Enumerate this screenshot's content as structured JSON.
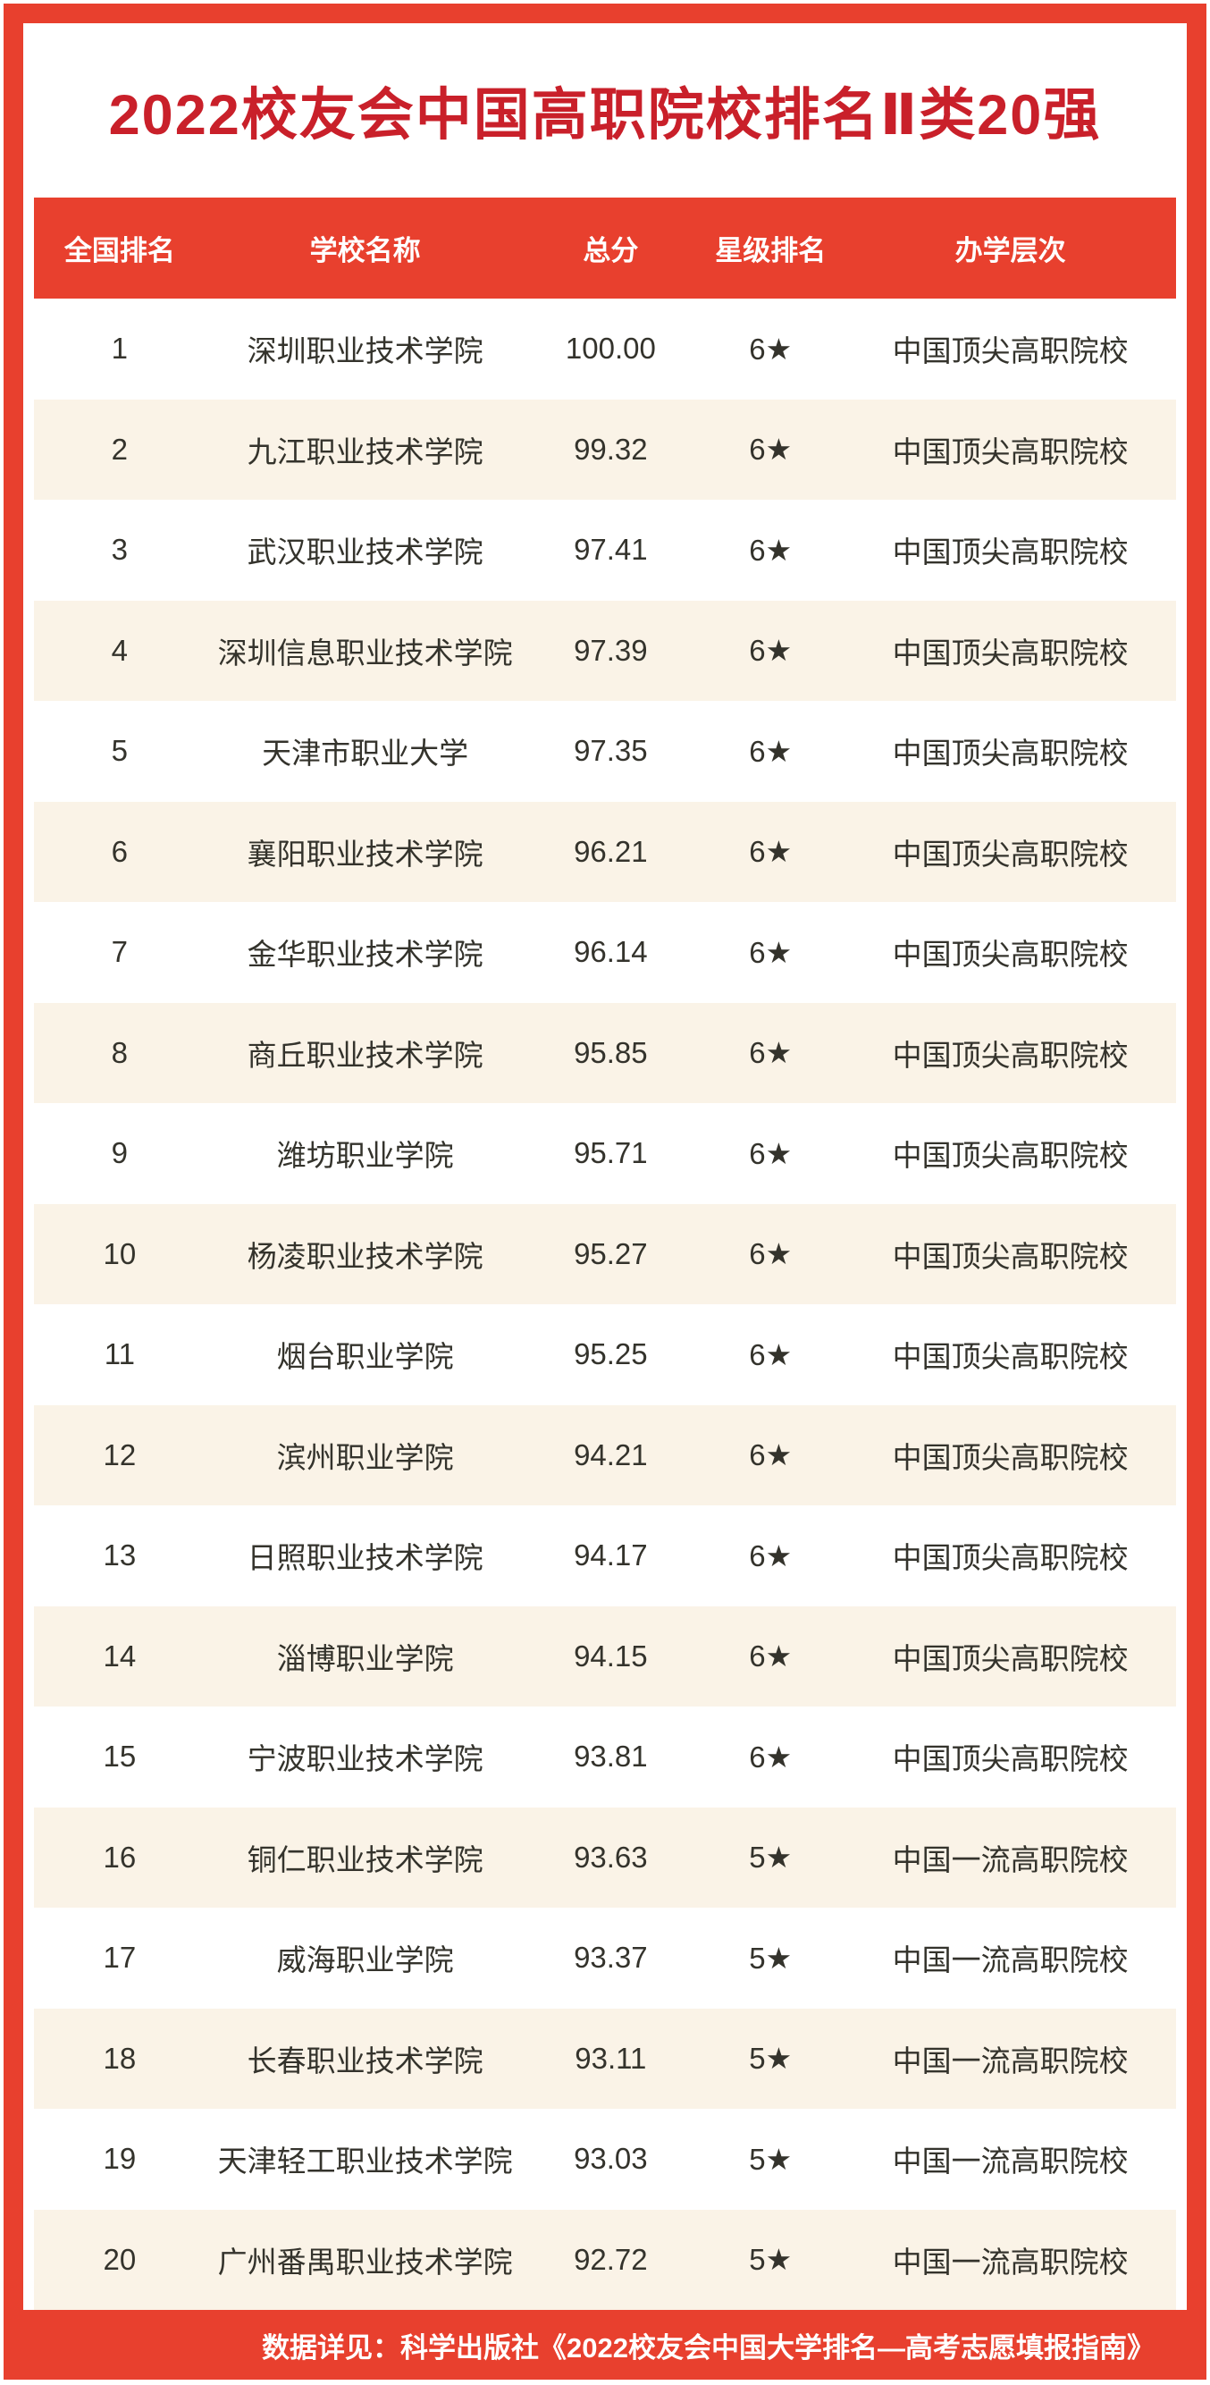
{
  "title": "2022校友会中国高职院校排名Ⅱ类20强",
  "table": {
    "headers": [
      "全国排名",
      "学校名称",
      "总分",
      "星级排名",
      "办学层次"
    ],
    "rows": [
      {
        "rank": "1",
        "school": "深圳职业技术学院",
        "score": "100.00",
        "star": "6★",
        "level": "中国顶尖高职院校"
      },
      {
        "rank": "2",
        "school": "九江职业技术学院",
        "score": "99.32",
        "star": "6★",
        "level": "中国顶尖高职院校"
      },
      {
        "rank": "3",
        "school": "武汉职业技术学院",
        "score": "97.41",
        "star": "6★",
        "level": "中国顶尖高职院校"
      },
      {
        "rank": "4",
        "school": "深圳信息职业技术学院",
        "score": "97.39",
        "star": "6★",
        "level": "中国顶尖高职院校"
      },
      {
        "rank": "5",
        "school": "天津市职业大学",
        "score": "97.35",
        "star": "6★",
        "level": "中国顶尖高职院校"
      },
      {
        "rank": "6",
        "school": "襄阳职业技术学院",
        "score": "96.21",
        "star": "6★",
        "level": "中国顶尖高职院校"
      },
      {
        "rank": "7",
        "school": "金华职业技术学院",
        "score": "96.14",
        "star": "6★",
        "level": "中国顶尖高职院校"
      },
      {
        "rank": "8",
        "school": "商丘职业技术学院",
        "score": "95.85",
        "star": "6★",
        "level": "中国顶尖高职院校"
      },
      {
        "rank": "9",
        "school": "潍坊职业学院",
        "score": "95.71",
        "star": "6★",
        "level": "中国顶尖高职院校"
      },
      {
        "rank": "10",
        "school": "杨凌职业技术学院",
        "score": "95.27",
        "star": "6★",
        "level": "中国顶尖高职院校"
      },
      {
        "rank": "11",
        "school": "烟台职业学院",
        "score": "95.25",
        "star": "6★",
        "level": "中国顶尖高职院校"
      },
      {
        "rank": "12",
        "school": "滨州职业学院",
        "score": "94.21",
        "star": "6★",
        "level": "中国顶尖高职院校"
      },
      {
        "rank": "13",
        "school": "日照职业技术学院",
        "score": "94.17",
        "star": "6★",
        "level": "中国顶尖高职院校"
      },
      {
        "rank": "14",
        "school": "淄博职业学院",
        "score": "94.15",
        "star": "6★",
        "level": "中国顶尖高职院校"
      },
      {
        "rank": "15",
        "school": "宁波职业技术学院",
        "score": "93.81",
        "star": "6★",
        "level": "中国顶尖高职院校"
      },
      {
        "rank": "16",
        "school": "铜仁职业技术学院",
        "score": "93.63",
        "star": "5★",
        "level": "中国一流高职院校"
      },
      {
        "rank": "17",
        "school": "威海职业学院",
        "score": "93.37",
        "star": "5★",
        "level": "中国一流高职院校"
      },
      {
        "rank": "18",
        "school": "长春职业技术学院",
        "score": "93.11",
        "star": "5★",
        "level": "中国一流高职院校"
      },
      {
        "rank": "19",
        "school": "天津轻工职业技术学院",
        "score": "93.03",
        "star": "5★",
        "level": "中国一流高职院校"
      },
      {
        "rank": "20",
        "school": "广州番禺职业技术学院",
        "score": "92.72",
        "star": "5★",
        "level": "中国一流高职院校"
      }
    ]
  },
  "footer": {
    "note": "数据详见：科学出版社《2022校友会中国大学排名—高考志愿填报指南》"
  },
  "colors": {
    "accent_red": "#e8402e",
    "title_red": "#c9202a",
    "row_alt_bg": "#faf3e7",
    "text_dark": "#34332c"
  }
}
